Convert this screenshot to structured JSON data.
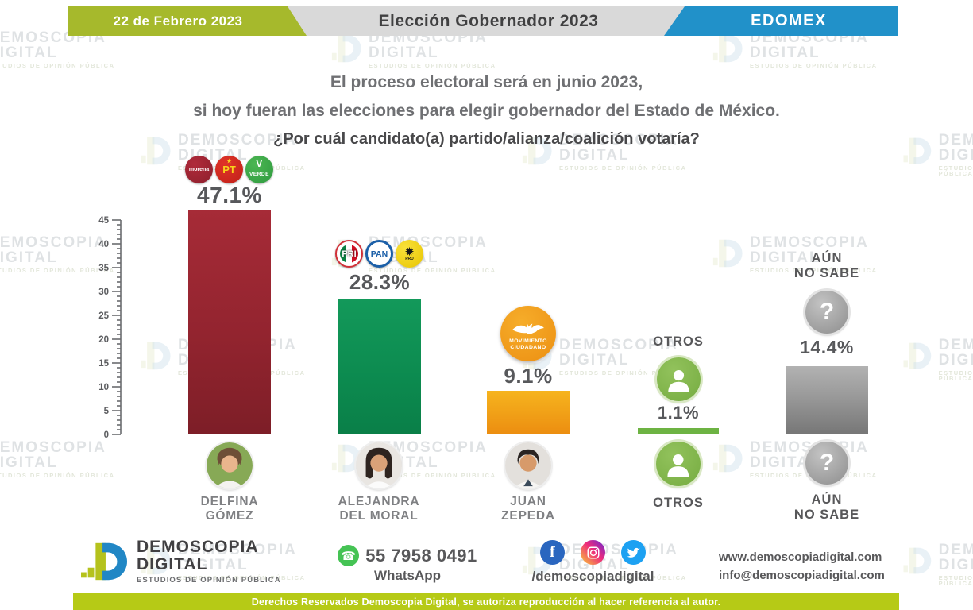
{
  "header": {
    "date": "22 de Febrero 2023",
    "title": "Elección Gobernador 2023",
    "region": "EDOMEX"
  },
  "question": {
    "line1": "El proceso electoral será en junio 2023,",
    "line2": "si hoy fueran las elecciones para elegir gobernador del Estado de México.",
    "line3": "¿Por cuál candidato(a) partido/alianza/coalición votaría?"
  },
  "chart_data": {
    "type": "bar",
    "title": "Intención de voto gobernador Estado de México 2023",
    "categories": [
      "Delfina Gómez (MORENA-PT-VERDE)",
      "Alejandra Del Moral (PRI-PAN-PRD)",
      "Juan Zepeda (Movimiento Ciudadano)",
      "Otros",
      "Aún no sabe"
    ],
    "values": [
      47.1,
      28.3,
      9.1,
      1.1,
      14.4
    ],
    "ylim": [
      0,
      45
    ],
    "yticks": [
      0,
      5,
      10,
      15,
      20,
      25,
      30,
      35,
      40,
      45
    ],
    "grid": false,
    "bars": [
      {
        "label": "DELFINA GÓMEZ",
        "value": 47.1,
        "display": "47.1%",
        "parties": [
          "MORENA",
          "PT",
          "VERDE"
        ],
        "color": "#93242f"
      },
      {
        "label": "ALEJANDRA DEL MORAL",
        "value": 28.3,
        "display": "28.3%",
        "parties": [
          "PRI",
          "PAN",
          "PRD"
        ],
        "color": "#0e9153"
      },
      {
        "label": "JUAN ZEPEDA",
        "value": 9.1,
        "display": "9.1%",
        "parties": [
          "MOVIMIENTO CIUDADANO"
        ],
        "color": "#f0a01c"
      },
      {
        "label": "OTROS",
        "value": 1.1,
        "display": "1.1%",
        "parties": [],
        "color": "#6db343"
      },
      {
        "label": "AÚN NO SABE",
        "value": 14.4,
        "display": "14.4%",
        "parties": [],
        "color": "#9a9a9a"
      }
    ]
  },
  "parties": {
    "morena": {
      "label": "morena"
    },
    "pt": {
      "label": "PT",
      "star": "★"
    },
    "verde": {
      "label": "VERDE",
      "mark": "V"
    },
    "pri": {
      "label": "PRI"
    },
    "pan": {
      "label": "PAN"
    },
    "prd": {
      "label": "PRD",
      "sun": "✹"
    },
    "mc": {
      "line1": "MOVIMIENTO",
      "line2": "CIUDADANO"
    }
  },
  "candidates": [
    {
      "first": "DELFINA",
      "last": "GÓMEZ"
    },
    {
      "first": "ALEJANDRA",
      "last": "DEL MORAL"
    },
    {
      "first": "JUAN",
      "last": "ZEPEDA"
    }
  ],
  "groups": {
    "others_label": "OTROS",
    "undecided_line1": "AÚN",
    "undecided_line2": "NO SABE",
    "question_mark": "?"
  },
  "footer": {
    "brand": {
      "line1": "DEMOSCOPIA",
      "line2": "DIGITAL",
      "tagline": "ESTUDIOS DE OPINIÓN PÚBLICA"
    },
    "whatsapp": {
      "number": "55 7958 0491",
      "label": "WhatsApp"
    },
    "social_handle": "/demoscopiadigital",
    "website": "www.demoscopiadigital.com",
    "email": "info@demoscopiadigital.com"
  },
  "copyright": "Derechos Reservados Demoscopia Digital, se autoriza reproducción al hacer referencia al autor.",
  "watermark": {
    "line1": "DEMOSCOPIA",
    "line2": "DIGITAL",
    "line3": "ESTUDIOS DE OPINIÓN PÚBLICA"
  },
  "colors": {
    "header_green": "#a6b92c",
    "header_gray": "#d9d9d9",
    "header_blue": "#2191c9",
    "morena_red": "#93242f",
    "alliance_green": "#0e9153",
    "mc_orange": "#f0a01c",
    "otros_green": "#6db343",
    "undecided_gray": "#9a9a9a",
    "copyright_green": "#b6ca16"
  }
}
